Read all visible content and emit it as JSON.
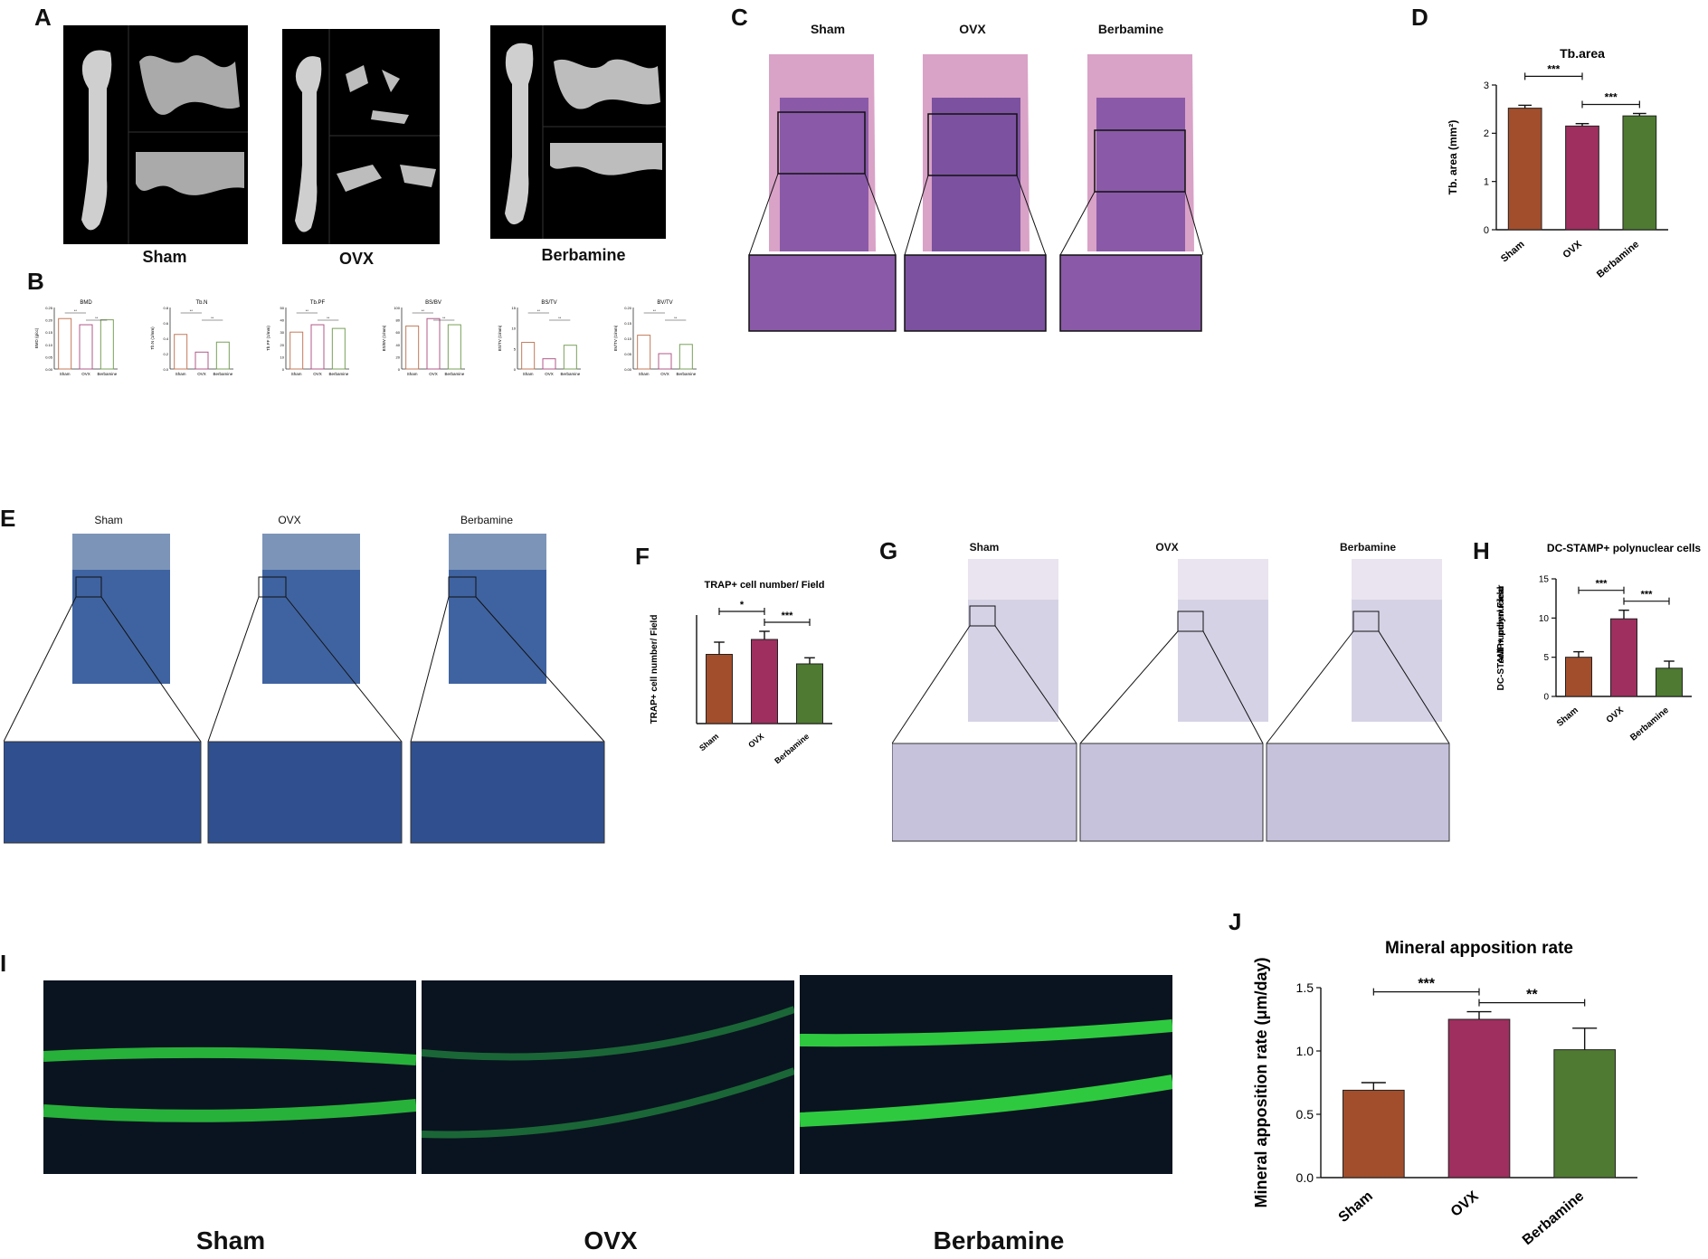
{
  "panels": {
    "A": {
      "label": "A",
      "groups": [
        "Sham",
        "OVX",
        "Berbamine"
      ]
    },
    "B": {
      "label": "B"
    },
    "C": {
      "label": "C",
      "groups": [
        "Sham",
        "OVX",
        "Berbamine"
      ]
    },
    "D": {
      "label": "D"
    },
    "E": {
      "label": "E",
      "groups": [
        "Sham",
        "OVX",
        "Berbamine"
      ]
    },
    "F": {
      "label": "F"
    },
    "G": {
      "label": "G",
      "groups": [
        "Sham",
        "OVX",
        "Berbamine"
      ]
    },
    "H": {
      "label": "H"
    },
    "I": {
      "label": "I",
      "groups": [
        "Sham",
        "OVX",
        "Berbamine"
      ]
    },
    "J": {
      "label": "J"
    }
  },
  "colors": {
    "sham": "#a24e2c",
    "ovx": "#9e2f5e",
    "berbamine": "#4e7a31",
    "sham_light": "#c47a5a",
    "ovx_light": "#b05a8a",
    "berb_light": "#7aa05a"
  },
  "chart_data": [
    {
      "id": "D",
      "type": "bar",
      "title": "Tb.area",
      "ylabel": "Tb. area (mm²)",
      "categories": [
        "Sham",
        "OVX",
        "Berbamine"
      ],
      "values": [
        2.52,
        2.15,
        2.36
      ],
      "errors": [
        0.06,
        0.05,
        0.05
      ],
      "ylim": [
        0,
        3
      ],
      "yticks": [
        0,
        1,
        2,
        3
      ],
      "significance": [
        {
          "from": 0,
          "to": 1,
          "label": "***"
        },
        {
          "from": 1,
          "to": 2,
          "label": "***"
        }
      ]
    },
    {
      "id": "F",
      "type": "bar",
      "title": "TRAP+ cell number/ Field",
      "ylabel": "TRAP+ cell number/ Field",
      "categories": [
        "Sham",
        "OVX",
        "Berbamine"
      ],
      "values": [
        10.2,
        12.4,
        8.8
      ],
      "errors": [
        1.8,
        1.2,
        0.9
      ],
      "ylim": [
        0,
        16
      ],
      "yticks": [],
      "significance": [
        {
          "from": 0,
          "to": 1,
          "label": "*"
        },
        {
          "from": 1,
          "to": 2,
          "label": "***"
        }
      ]
    },
    {
      "id": "H",
      "type": "bar",
      "title": "DC-STAMP+ polynuclear cells",
      "ylabel": "DC-STAMP+ polynuclear cell number/ Field",
      "categories": [
        "Sham",
        "OVX",
        "Berbamine"
      ],
      "values": [
        5.0,
        9.9,
        3.6
      ],
      "errors": [
        0.7,
        1.1,
        0.9
      ],
      "ylim": [
        0,
        15
      ],
      "yticks": [
        0,
        5,
        10,
        15
      ],
      "significance": [
        {
          "from": 0,
          "to": 1,
          "label": "***"
        },
        {
          "from": 1,
          "to": 2,
          "label": "***"
        }
      ]
    },
    {
      "id": "J",
      "type": "bar",
      "title": "Mineral apposition rate",
      "ylabel": "Mineral apposition rate (μm/day)",
      "categories": [
        "Sham",
        "OVX",
        "Berbamine"
      ],
      "values": [
        0.69,
        1.25,
        1.01
      ],
      "errors": [
        0.06,
        0.06,
        0.17
      ],
      "ylim": [
        0,
        1.5
      ],
      "yticks": [
        0.0,
        0.5,
        1.0,
        1.5
      ],
      "significance": [
        {
          "from": 0,
          "to": 1,
          "label": "***"
        },
        {
          "from": 1,
          "to": 2,
          "label": "**"
        }
      ]
    }
  ],
  "small_charts": [
    {
      "id": "B1",
      "type": "bar",
      "title": "BMD",
      "ylabel": "BMD (g/cc)",
      "categories": [
        "Sham",
        "OVX",
        "Berbamine"
      ],
      "values": [
        0.205,
        0.18,
        0.2
      ],
      "ylim": [
        0,
        0.25
      ],
      "yticks": [
        "0.25",
        "0.20",
        "0.15",
        "0.10",
        "0.05",
        "0.00"
      ],
      "sig": [
        "**",
        "**"
      ]
    },
    {
      "id": "B2",
      "type": "bar",
      "title": "Tb.N",
      "ylabel": "Tb.N (1/mm)",
      "categories": [
        "Sham",
        "OVX",
        "Berbamine"
      ],
      "values": [
        0.45,
        0.22,
        0.35
      ],
      "ylim": [
        0,
        0.8
      ],
      "yticks": [
        "0.8",
        "0.6",
        "0.4",
        "0.2",
        "0.0"
      ],
      "sig": [
        "**",
        "**"
      ]
    },
    {
      "id": "B3",
      "type": "bar",
      "title": "Tb.PF",
      "ylabel": "Tb.PF (1/mm)",
      "categories": [
        "Sham",
        "OVX",
        "Berbamine"
      ],
      "values": [
        30,
        36,
        33
      ],
      "ylim": [
        0,
        50
      ],
      "yticks": [
        "50",
        "40",
        "30",
        "20",
        "10",
        "0"
      ],
      "sig": [
        "**",
        "**"
      ]
    },
    {
      "id": "B4",
      "type": "bar",
      "title": "BS/BV",
      "ylabel": "BS/BV (1/mm)",
      "categories": [
        "Sham",
        "OVX",
        "Berbamine"
      ],
      "values": [
        70,
        82,
        72
      ],
      "ylim": [
        0,
        100
      ],
      "yticks": [
        "100",
        "80",
        "60",
        "40",
        "20",
        "0"
      ],
      "sig": [
        "**",
        "**"
      ]
    },
    {
      "id": "B5",
      "type": "bar",
      "title": "BS/TV",
      "ylabel": "BS/TV (1/mm)",
      "categories": [
        "Sham",
        "OVX",
        "Berbamine"
      ],
      "values": [
        6.5,
        2.5,
        5.8
      ],
      "ylim": [
        0,
        15
      ],
      "yticks": [
        "15",
        "10",
        "5",
        "0"
      ],
      "sig": [
        "**",
        "**"
      ]
    },
    {
      "id": "B6",
      "type": "bar",
      "title": "BV/TV",
      "ylabel": "BV/TV (1/mm)",
      "categories": [
        "Sham",
        "OVX",
        "Berbamine"
      ],
      "values": [
        0.11,
        0.05,
        0.08
      ],
      "ylim": [
        0,
        0.2
      ],
      "yticks": [
        "0.20",
        "0.15",
        "0.10",
        "0.05",
        "0.00"
      ],
      "sig": [
        "**",
        "**"
      ]
    }
  ]
}
